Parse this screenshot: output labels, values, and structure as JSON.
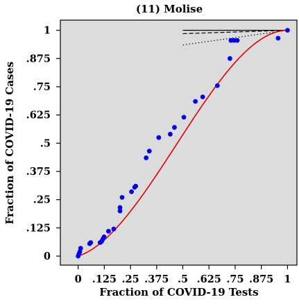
{
  "chart_data": {
    "type": "scatter",
    "title": "(11) Molise",
    "xlabel": "Fraction of COVID-19 Tests",
    "ylabel": "Fraction of COVID-19 Cases",
    "xlim": [
      -0.085,
      1.045
    ],
    "ylim": [
      -0.04,
      1.045
    ],
    "grid": false,
    "background": "#dcdcdc",
    "x_ticks": [
      {
        "value": 0,
        "label": "0"
      },
      {
        "value": 0.125,
        "label": ".125"
      },
      {
        "value": 0.25,
        "label": ".25"
      },
      {
        "value": 0.375,
        "label": ".375"
      },
      {
        "value": 0.5,
        "label": ".5"
      },
      {
        "value": 0.625,
        "label": ".625"
      },
      {
        "value": 0.75,
        "label": ".75"
      },
      {
        "value": 0.875,
        "label": ".875"
      },
      {
        "value": 1,
        "label": "1"
      }
    ],
    "y_ticks": [
      {
        "value": 0,
        "label": "0"
      },
      {
        "value": 0.125,
        "label": ".125"
      },
      {
        "value": 0.25,
        "label": ".25"
      },
      {
        "value": 0.375,
        "label": ".375"
      },
      {
        "value": 0.5,
        "label": ".5"
      },
      {
        "value": 0.625,
        "label": ".625"
      },
      {
        "value": 0.75,
        "label": ".75"
      },
      {
        "value": 0.875,
        "label": ".875"
      },
      {
        "value": 1,
        "label": "1"
      }
    ],
    "points": [
      {
        "x": 0.0,
        "y": 0.0
      },
      {
        "x": 0.004,
        "y": 0.01
      },
      {
        "x": 0.008,
        "y": 0.02
      },
      {
        "x": 0.012,
        "y": 0.035
      },
      {
        "x": 0.055,
        "y": 0.055
      },
      {
        "x": 0.06,
        "y": 0.06
      },
      {
        "x": 0.105,
        "y": 0.06
      },
      {
        "x": 0.112,
        "y": 0.065
      },
      {
        "x": 0.118,
        "y": 0.075
      },
      {
        "x": 0.124,
        "y": 0.085
      },
      {
        "x": 0.145,
        "y": 0.11
      },
      {
        "x": 0.17,
        "y": 0.12
      },
      {
        "x": 0.2,
        "y": 0.2
      },
      {
        "x": 0.2,
        "y": 0.215
      },
      {
        "x": 0.21,
        "y": 0.26
      },
      {
        "x": 0.255,
        "y": 0.285
      },
      {
        "x": 0.27,
        "y": 0.305
      },
      {
        "x": 0.275,
        "y": 0.31
      },
      {
        "x": 0.325,
        "y": 0.435
      },
      {
        "x": 0.34,
        "y": 0.465
      },
      {
        "x": 0.385,
        "y": 0.525
      },
      {
        "x": 0.44,
        "y": 0.54
      },
      {
        "x": 0.46,
        "y": 0.57
      },
      {
        "x": 0.505,
        "y": 0.615
      },
      {
        "x": 0.56,
        "y": 0.685
      },
      {
        "x": 0.595,
        "y": 0.705
      },
      {
        "x": 0.665,
        "y": 0.755
      },
      {
        "x": 0.725,
        "y": 0.875
      },
      {
        "x": 0.73,
        "y": 0.955
      },
      {
        "x": 0.745,
        "y": 0.955
      },
      {
        "x": 0.76,
        "y": 0.955
      },
      {
        "x": 0.955,
        "y": 0.965
      },
      {
        "x": 1.0,
        "y": 1.0
      }
    ],
    "fit_curve": {
      "type": "cubic",
      "coefficients": [
        0,
        0.3,
        2.4,
        -1.7
      ],
      "color": "#e00000"
    },
    "reference_lines": [
      {
        "style": "solid",
        "x": [
          0.5,
          1.0
        ],
        "y": [
          1.0,
          1.0
        ]
      },
      {
        "style": "dashed",
        "x": [
          0.5,
          1.0
        ],
        "y": [
          0.985,
          1.0
        ]
      },
      {
        "style": "dotted",
        "x": [
          0.5,
          1.0
        ],
        "y": [
          0.935,
          1.0
        ]
      }
    ],
    "point_color": "#0000ee"
  }
}
